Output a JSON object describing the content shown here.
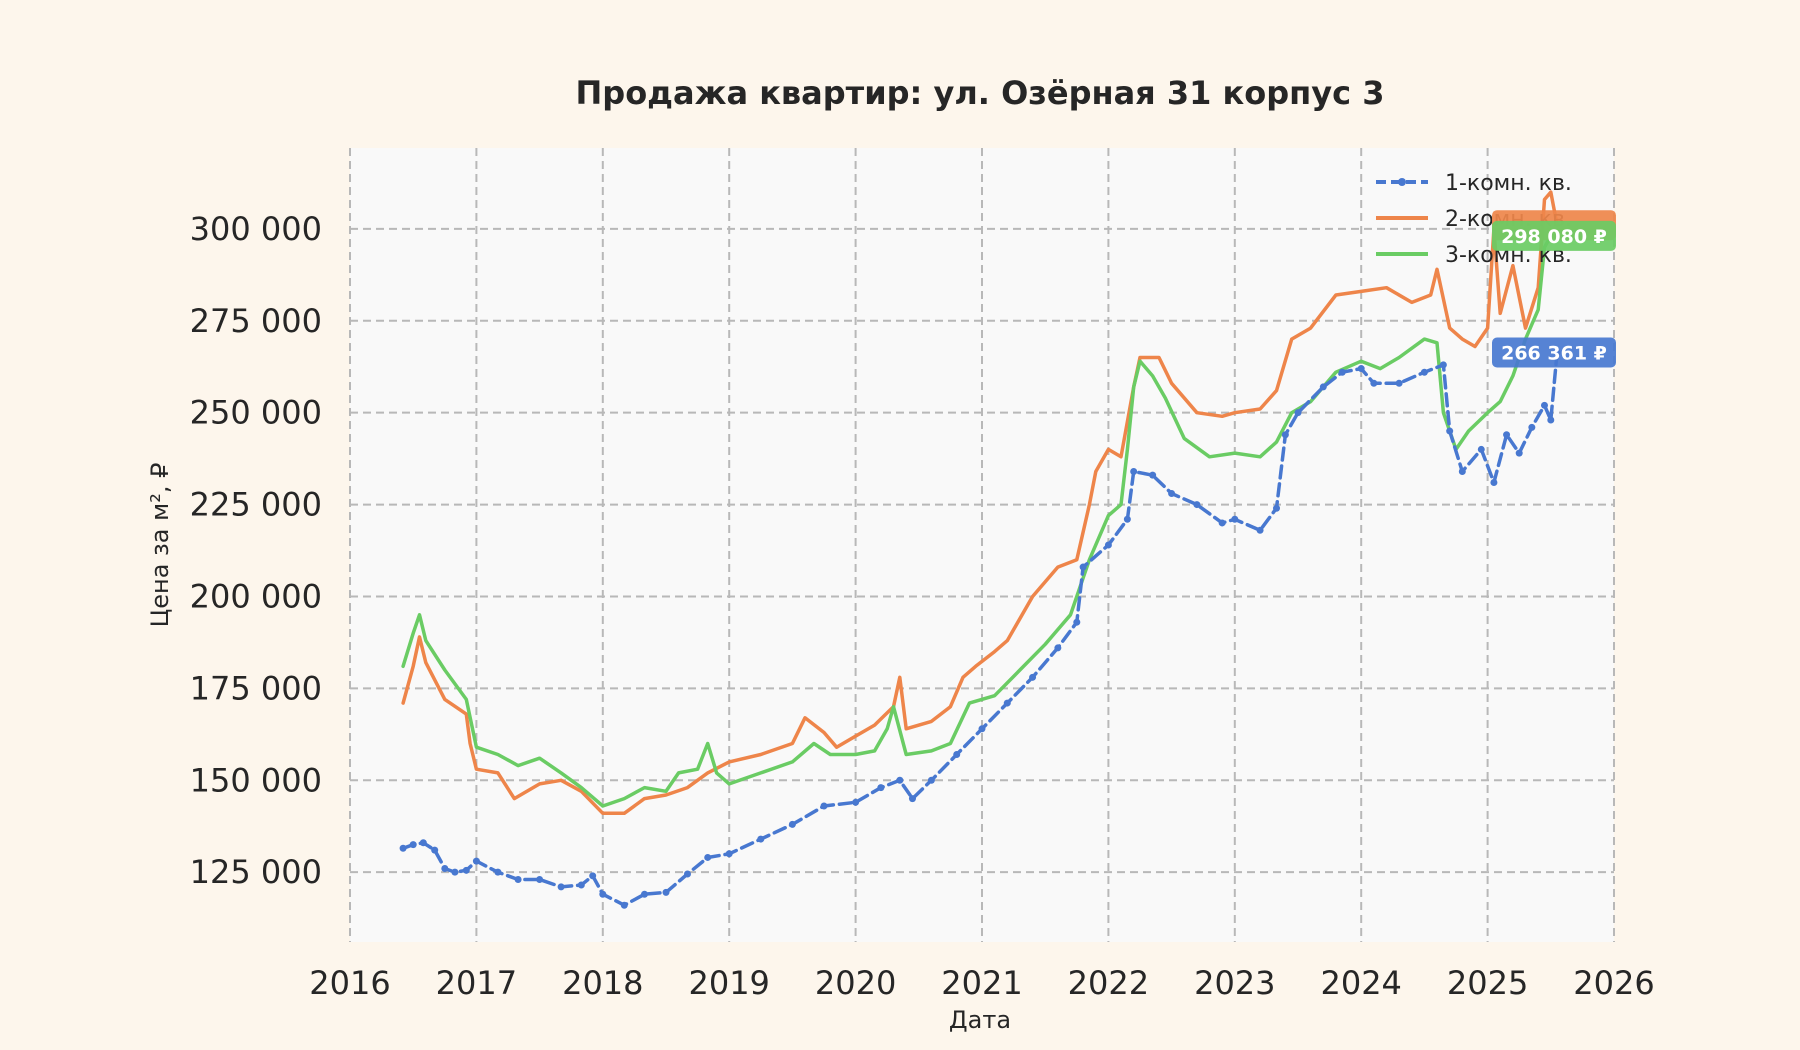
{
  "chart_data": {
    "type": "line",
    "title": "Продажа квартир: ул. Озёрная 31 корпус 3",
    "xlabel": "Дата",
    "ylabel": "Цена за м², ₽",
    "xlim": [
      2016.0,
      2026.0
    ],
    "ylim": [
      106000,
      322000
    ],
    "x_ticks": [
      2016,
      2017,
      2018,
      2019,
      2020,
      2021,
      2022,
      2023,
      2024,
      2025,
      2026
    ],
    "x_tick_labels": [
      "2016",
      "2017",
      "2018",
      "2019",
      "2020",
      "2021",
      "2022",
      "2023",
      "2024",
      "2025",
      "2026"
    ],
    "y_ticks": [
      125000,
      150000,
      175000,
      200000,
      225000,
      250000,
      275000,
      300000
    ],
    "y_tick_labels": [
      "125 000",
      "150 000",
      "175 000",
      "200 000",
      "225 000",
      "250 000",
      "275 000",
      "300 000"
    ],
    "grid": true,
    "legend_position": "top-right",
    "series": [
      {
        "name": "1-комн. кв.",
        "color": "#4878d0",
        "style": "dashed-markers",
        "points": [
          [
            2016.42,
            131500
          ],
          [
            2016.5,
            132500
          ],
          [
            2016.58,
            133000
          ],
          [
            2016.67,
            131000
          ],
          [
            2016.75,
            126000
          ],
          [
            2016.83,
            125000
          ],
          [
            2016.92,
            125500
          ],
          [
            2017.0,
            128000
          ],
          [
            2017.17,
            125000
          ],
          [
            2017.33,
            123000
          ],
          [
            2017.5,
            123000
          ],
          [
            2017.67,
            121000
          ],
          [
            2017.83,
            121500
          ],
          [
            2017.92,
            124000
          ],
          [
            2018.0,
            119000
          ],
          [
            2018.17,
            116000
          ],
          [
            2018.33,
            119000
          ],
          [
            2018.5,
            119500
          ],
          [
            2018.67,
            124500
          ],
          [
            2018.83,
            129000
          ],
          [
            2019.0,
            130000
          ],
          [
            2019.25,
            134000
          ],
          [
            2019.5,
            138000
          ],
          [
            2019.75,
            143000
          ],
          [
            2020.0,
            144000
          ],
          [
            2020.2,
            148000
          ],
          [
            2020.35,
            150000
          ],
          [
            2020.45,
            145000
          ],
          [
            2020.6,
            150000
          ],
          [
            2020.8,
            157000
          ],
          [
            2021.0,
            164000
          ],
          [
            2021.2,
            171000
          ],
          [
            2021.4,
            178000
          ],
          [
            2021.6,
            186000
          ],
          [
            2021.75,
            193000
          ],
          [
            2021.8,
            208000
          ],
          [
            2022.0,
            214000
          ],
          [
            2022.15,
            221000
          ],
          [
            2022.2,
            234000
          ],
          [
            2022.35,
            233000
          ],
          [
            2022.5,
            228000
          ],
          [
            2022.7,
            225000
          ],
          [
            2022.9,
            220000
          ],
          [
            2023.0,
            221000
          ],
          [
            2023.2,
            218000
          ],
          [
            2023.33,
            224000
          ],
          [
            2023.4,
            244000
          ],
          [
            2023.5,
            250000
          ],
          [
            2023.7,
            257000
          ],
          [
            2023.85,
            261000
          ],
          [
            2024.0,
            262000
          ],
          [
            2024.1,
            258000
          ],
          [
            2024.3,
            258000
          ],
          [
            2024.5,
            261000
          ],
          [
            2024.65,
            263000
          ],
          [
            2024.7,
            245000
          ],
          [
            2024.8,
            234000
          ],
          [
            2024.95,
            240000
          ],
          [
            2025.05,
            231000
          ],
          [
            2025.15,
            244000
          ],
          [
            2025.25,
            239000
          ],
          [
            2025.35,
            246000
          ],
          [
            2025.45,
            252000
          ],
          [
            2025.5,
            248000
          ],
          [
            2025.55,
            266361
          ]
        ]
      },
      {
        "name": "2-комн. кв.",
        "color": "#ee854a",
        "style": "solid",
        "points": [
          [
            2016.42,
            171000
          ],
          [
            2016.5,
            181000
          ],
          [
            2016.55,
            189000
          ],
          [
            2016.6,
            182000
          ],
          [
            2016.75,
            172000
          ],
          [
            2016.92,
            168000
          ],
          [
            2016.95,
            160000
          ],
          [
            2017.0,
            153000
          ],
          [
            2017.17,
            152000
          ],
          [
            2017.3,
            145000
          ],
          [
            2017.5,
            149000
          ],
          [
            2017.67,
            150000
          ],
          [
            2017.83,
            147000
          ],
          [
            2018.0,
            141000
          ],
          [
            2018.17,
            141000
          ],
          [
            2018.33,
            145000
          ],
          [
            2018.5,
            146000
          ],
          [
            2018.67,
            148000
          ],
          [
            2018.83,
            152000
          ],
          [
            2019.0,
            155000
          ],
          [
            2019.25,
            157000
          ],
          [
            2019.5,
            160000
          ],
          [
            2019.6,
            167000
          ],
          [
            2019.75,
            163000
          ],
          [
            2019.85,
            159000
          ],
          [
            2020.0,
            162000
          ],
          [
            2020.15,
            165000
          ],
          [
            2020.3,
            170000
          ],
          [
            2020.35,
            178000
          ],
          [
            2020.4,
            164000
          ],
          [
            2020.6,
            166000
          ],
          [
            2020.75,
            170000
          ],
          [
            2020.85,
            178000
          ],
          [
            2020.95,
            181000
          ],
          [
            2021.1,
            185000
          ],
          [
            2021.2,
            188000
          ],
          [
            2021.4,
            200000
          ],
          [
            2021.6,
            208000
          ],
          [
            2021.75,
            210000
          ],
          [
            2021.85,
            225000
          ],
          [
            2021.9,
            234000
          ],
          [
            2022.0,
            240000
          ],
          [
            2022.1,
            238000
          ],
          [
            2022.2,
            257000
          ],
          [
            2022.25,
            265000
          ],
          [
            2022.4,
            265000
          ],
          [
            2022.5,
            258000
          ],
          [
            2022.7,
            250000
          ],
          [
            2022.9,
            249000
          ],
          [
            2023.0,
            250000
          ],
          [
            2023.2,
            251000
          ],
          [
            2023.33,
            256000
          ],
          [
            2023.45,
            270000
          ],
          [
            2023.6,
            273000
          ],
          [
            2023.8,
            282000
          ],
          [
            2024.0,
            283000
          ],
          [
            2024.2,
            284000
          ],
          [
            2024.4,
            280000
          ],
          [
            2024.55,
            282000
          ],
          [
            2024.6,
            289000
          ],
          [
            2024.7,
            273000
          ],
          [
            2024.8,
            270000
          ],
          [
            2024.9,
            268000
          ],
          [
            2025.0,
            273000
          ],
          [
            2025.05,
            300000
          ],
          [
            2025.1,
            277000
          ],
          [
            2025.2,
            290000
          ],
          [
            2025.3,
            273000
          ],
          [
            2025.4,
            284000
          ],
          [
            2025.45,
            308000
          ],
          [
            2025.5,
            310000
          ],
          [
            2025.55,
            301000
          ]
        ]
      },
      {
        "name": "3-комн. кв.",
        "color": "#6acc64",
        "style": "solid",
        "points": [
          [
            2016.42,
            181000
          ],
          [
            2016.5,
            190000
          ],
          [
            2016.55,
            195000
          ],
          [
            2016.6,
            188000
          ],
          [
            2016.75,
            180000
          ],
          [
            2016.92,
            172000
          ],
          [
            2017.0,
            159000
          ],
          [
            2017.17,
            157000
          ],
          [
            2017.33,
            154000
          ],
          [
            2017.5,
            156000
          ],
          [
            2017.67,
            152000
          ],
          [
            2017.83,
            148000
          ],
          [
            2018.0,
            143000
          ],
          [
            2018.17,
            145000
          ],
          [
            2018.33,
            148000
          ],
          [
            2018.5,
            147000
          ],
          [
            2018.6,
            152000
          ],
          [
            2018.75,
            153000
          ],
          [
            2018.83,
            160000
          ],
          [
            2018.9,
            152000
          ],
          [
            2019.0,
            149000
          ],
          [
            2019.25,
            152000
          ],
          [
            2019.5,
            155000
          ],
          [
            2019.67,
            160000
          ],
          [
            2019.8,
            157000
          ],
          [
            2020.0,
            157000
          ],
          [
            2020.15,
            158000
          ],
          [
            2020.25,
            164000
          ],
          [
            2020.3,
            170000
          ],
          [
            2020.4,
            157000
          ],
          [
            2020.6,
            158000
          ],
          [
            2020.75,
            160000
          ],
          [
            2020.9,
            171000
          ],
          [
            2021.1,
            173000
          ],
          [
            2021.3,
            180000
          ],
          [
            2021.5,
            187000
          ],
          [
            2021.7,
            195000
          ],
          [
            2021.85,
            210000
          ],
          [
            2022.0,
            222000
          ],
          [
            2022.1,
            225000
          ],
          [
            2022.15,
            240000
          ],
          [
            2022.2,
            257000
          ],
          [
            2022.25,
            264000
          ],
          [
            2022.35,
            260000
          ],
          [
            2022.45,
            254000
          ],
          [
            2022.6,
            243000
          ],
          [
            2022.8,
            238000
          ],
          [
            2023.0,
            239000
          ],
          [
            2023.2,
            238000
          ],
          [
            2023.33,
            242000
          ],
          [
            2023.45,
            250000
          ],
          [
            2023.6,
            253000
          ],
          [
            2023.8,
            261000
          ],
          [
            2024.0,
            264000
          ],
          [
            2024.15,
            262000
          ],
          [
            2024.3,
            265000
          ],
          [
            2024.5,
            270000
          ],
          [
            2024.6,
            269000
          ],
          [
            2024.65,
            250000
          ],
          [
            2024.75,
            240000
          ],
          [
            2024.85,
            245000
          ],
          [
            2025.0,
            250000
          ],
          [
            2025.1,
            253000
          ],
          [
            2025.2,
            260000
          ],
          [
            2025.3,
            270000
          ],
          [
            2025.4,
            278000
          ],
          [
            2025.45,
            295000
          ],
          [
            2025.5,
            298000
          ],
          [
            2025.55,
            298080
          ]
        ]
      }
    ],
    "last_value_badges": [
      {
        "series": "2-комн. кв.",
        "value": 301000,
        "text": "",
        "color": "#ee854a"
      },
      {
        "series": "3-комн. кв.",
        "value": 298080,
        "text": "298 080 ₽",
        "color": "#6acc64"
      },
      {
        "series": "1-комн. кв.",
        "value": 266361,
        "text": "266 361 ₽",
        "color": "#4878d0"
      }
    ]
  }
}
